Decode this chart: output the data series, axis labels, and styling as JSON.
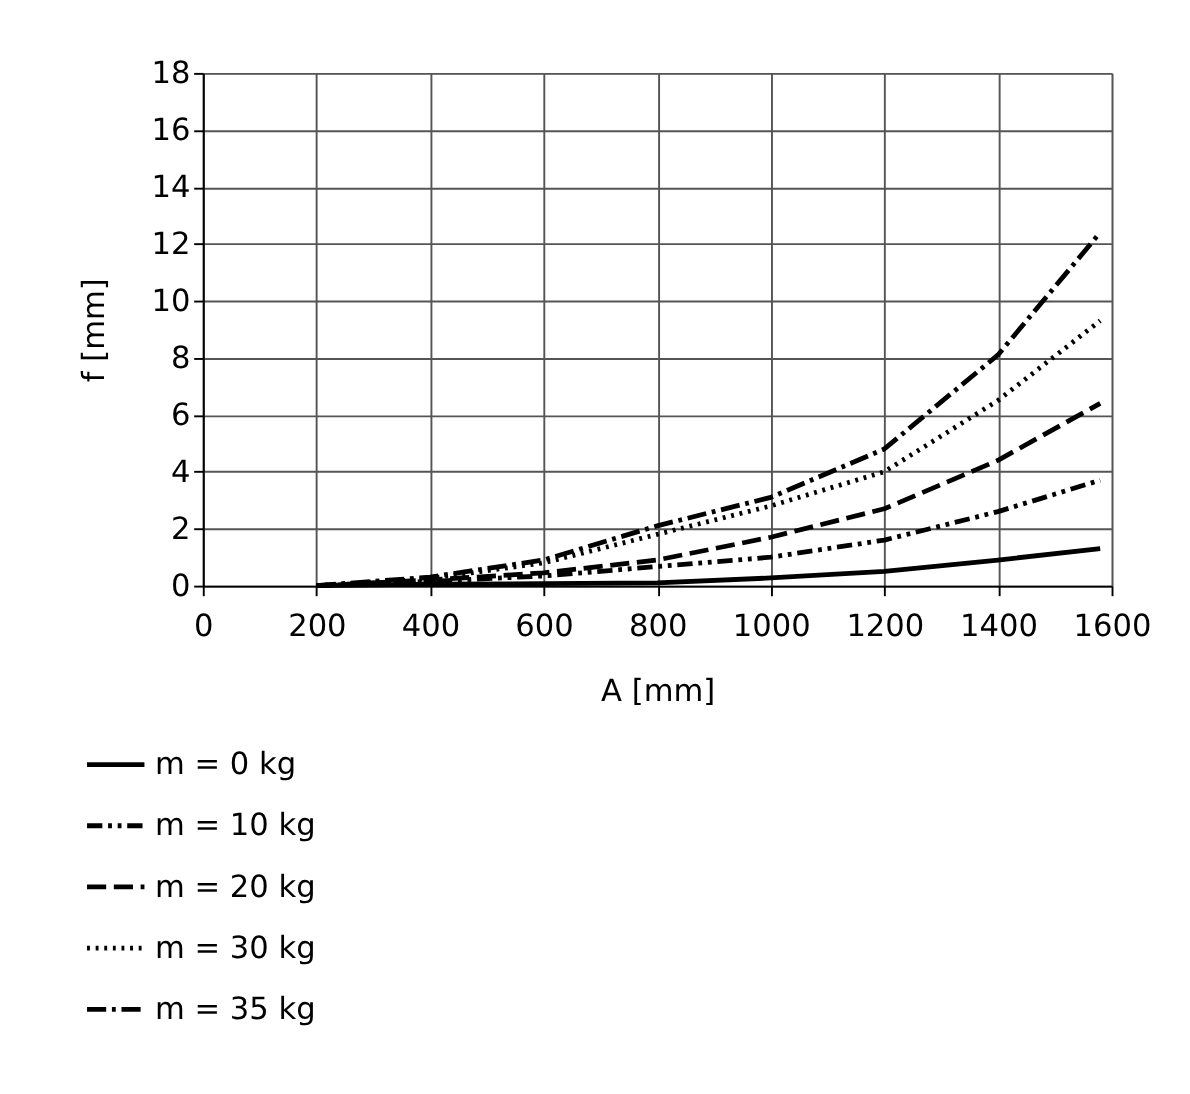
{
  "chart_data": {
    "type": "line",
    "xlabel": "A [mm]",
    "ylabel": "f [mm]",
    "xlim": [
      0,
      1600
    ],
    "xticks": [
      0,
      200,
      400,
      600,
      800,
      1000,
      1200,
      1400,
      1600
    ],
    "ylim": [
      0,
      18
    ],
    "yticks": [
      0,
      2,
      4,
      6,
      8,
      10,
      12,
      14,
      16,
      18
    ],
    "grid": true,
    "legend": "bottom",
    "marker": "none",
    "x": [
      200,
      400,
      600,
      800,
      1000,
      1200,
      1400,
      1580
    ],
    "series": [
      {
        "name": "m = 0 kg",
        "color": "#000000",
        "line_style": "solid",
        "values": [
          0,
          0.05,
          0.07,
          0.1,
          0.27,
          0.5,
          0.9,
          1.3
        ]
      },
      {
        "name": "m = 10 kg",
        "color": "#000000",
        "line_style": "dashdotdot",
        "values": [
          0,
          0.15,
          0.34,
          0.67,
          1.0,
          1.6,
          2.6,
          3.7
        ]
      },
      {
        "name": "m = 20 kg",
        "color": "#000000",
        "line_style": "dashed",
        "values": [
          0,
          0.2,
          0.45,
          0.9,
          1.7,
          2.7,
          4.4,
          6.4
        ]
      },
      {
        "name": "m = 30 kg",
        "color": "#000000",
        "line_style": "dotted",
        "values": [
          0,
          0.25,
          0.8,
          1.8,
          2.8,
          4.0,
          6.5,
          9.3
        ]
      },
      {
        "name": "m = 35 kg",
        "color": "#000000",
        "line_style": "dashdot",
        "values": [
          0,
          0.3,
          0.9,
          2.1,
          3.1,
          4.8,
          8.1,
          12.4
        ]
      }
    ]
  }
}
